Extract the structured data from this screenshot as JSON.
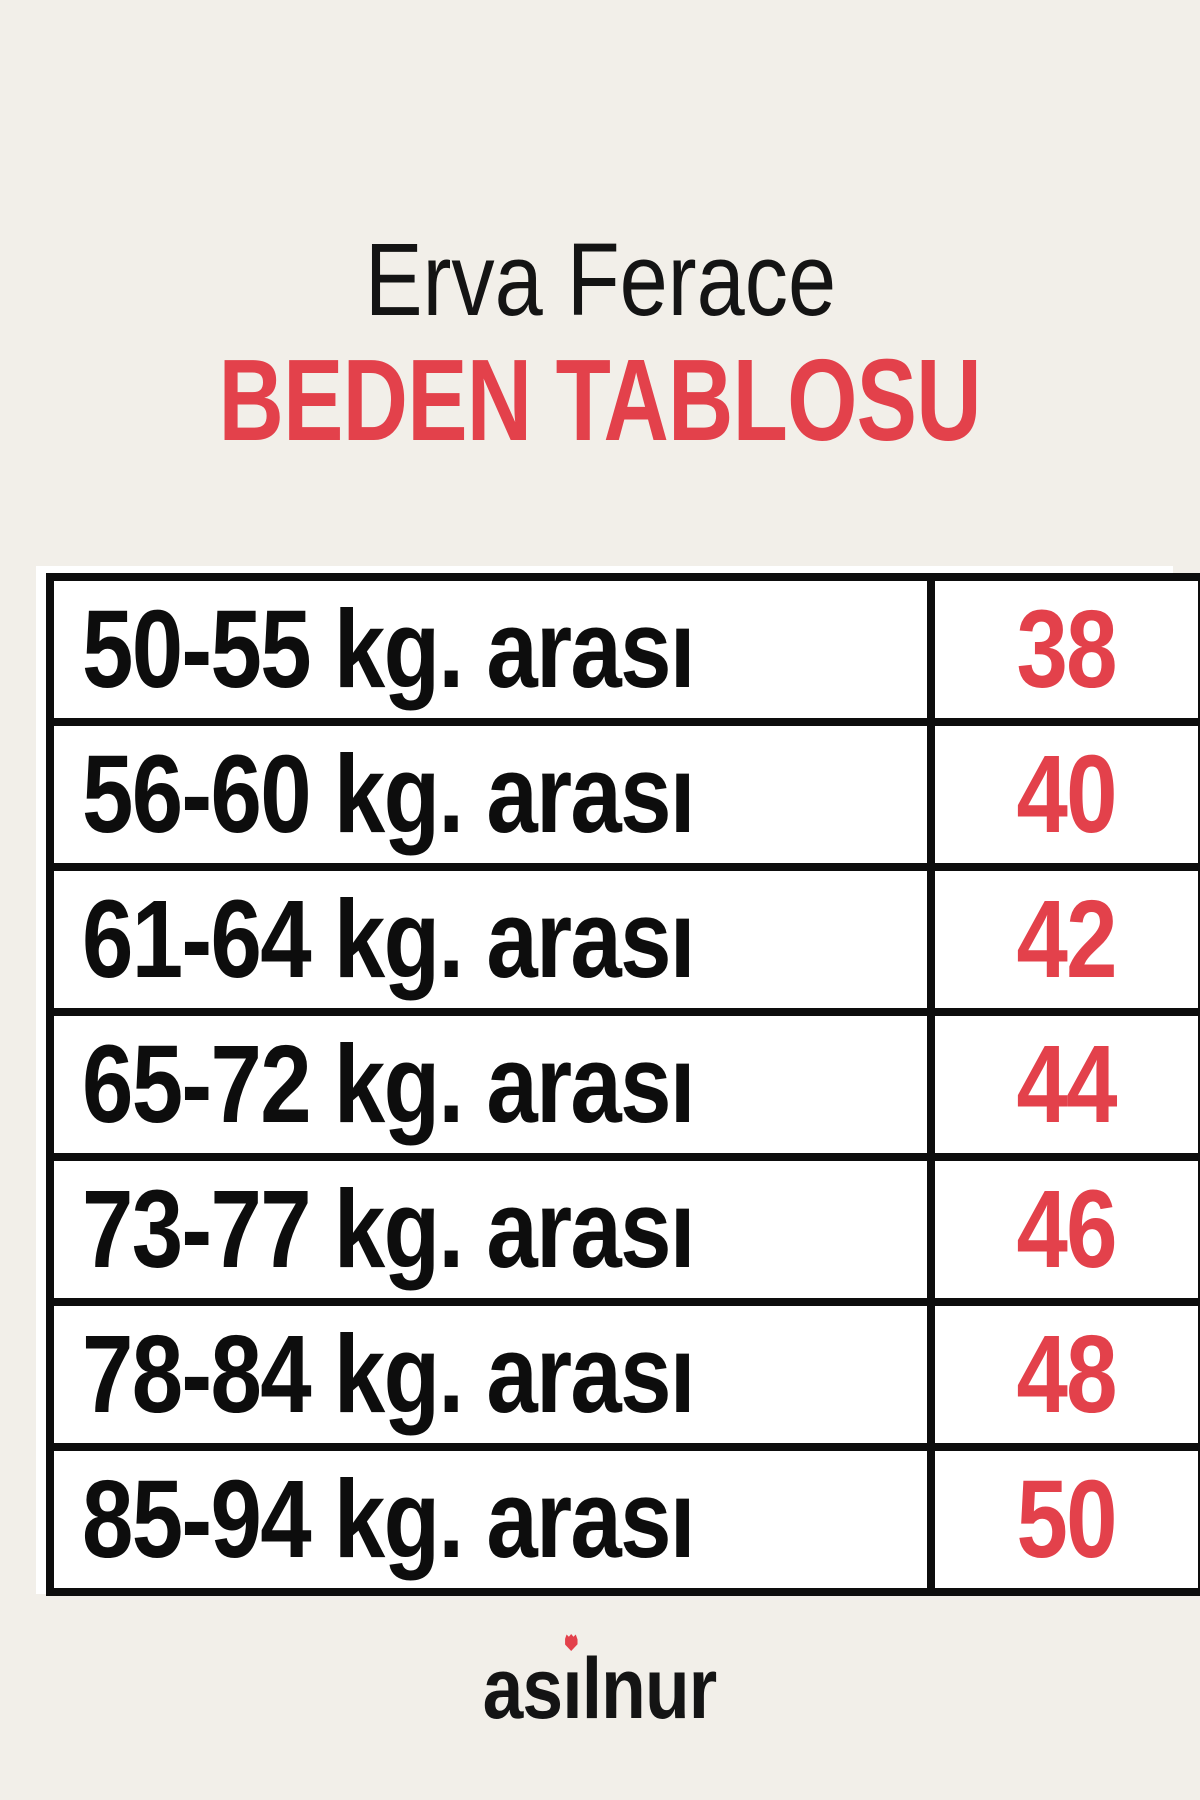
{
  "page": {
    "background_color": "#f2efe9",
    "accent_color": "#e3414b",
    "text_color": "#141414",
    "table_border_color": "#0d0d0d",
    "cell_background": "#ffffff"
  },
  "header": {
    "title": "Erva Ferace",
    "subtitle": "BEDEN TABLOSU"
  },
  "size_table": {
    "rows": [
      {
        "weight": "50-55 kg. arası",
        "size": "38"
      },
      {
        "weight": "56-60 kg. arası",
        "size": "40"
      },
      {
        "weight": "61-64 kg. arası",
        "size": "42"
      },
      {
        "weight": "65-72 kg. arası",
        "size": "44"
      },
      {
        "weight": "73-77 kg. arası",
        "size": "46"
      },
      {
        "weight": "78-84 kg. arası",
        "size": "48"
      },
      {
        "weight": "85-94 kg. arası",
        "size": "50"
      }
    ]
  },
  "footer": {
    "brand": "asilnur",
    "brand_prefix": "as",
    "brand_i": "ı",
    "brand_suffix": "lnur"
  },
  "chart_data": {
    "type": "table",
    "title": "Erva Ferace",
    "subtitle": "BEDEN TABLOSU",
    "columns": [
      "weight_range",
      "size"
    ],
    "rows": [
      [
        "50-55 kg. arası",
        38
      ],
      [
        "56-60 kg. arası",
        40
      ],
      [
        "61-64 kg. arası",
        42
      ],
      [
        "65-72 kg. arası",
        44
      ],
      [
        "73-77 kg. arası",
        46
      ],
      [
        "78-84 kg. arası",
        48
      ],
      [
        "85-94 kg. arası",
        50
      ]
    ],
    "footer_brand": "asilnur"
  }
}
